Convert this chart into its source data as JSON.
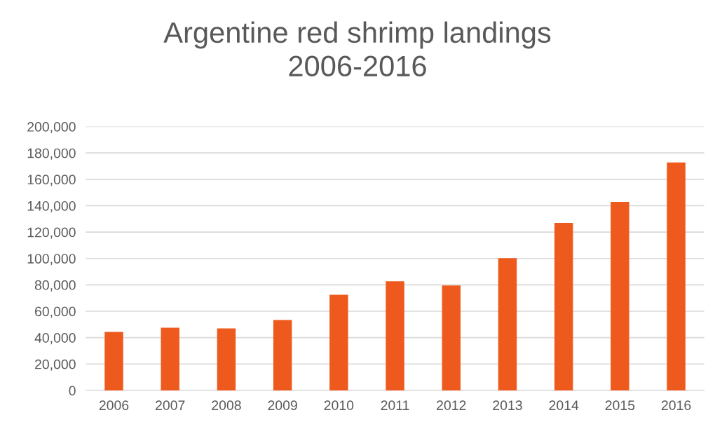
{
  "chart_data": {
    "type": "bar",
    "title": "Argentine red shrimp landings\n2006-2016",
    "categories": [
      "2006",
      "2007",
      "2008",
      "2009",
      "2010",
      "2011",
      "2012",
      "2013",
      "2014",
      "2015",
      "2016"
    ],
    "values": [
      44300,
      47500,
      47000,
      53300,
      72500,
      82700,
      79500,
      100300,
      126900,
      142900,
      172800
    ],
    "color": "#ee5a1e",
    "ylim": [
      0,
      200000
    ],
    "yticks": [
      {
        "value": 0,
        "label": "0"
      },
      {
        "value": 20000,
        "label": "20,000"
      },
      {
        "value": 40000,
        "label": "40,000"
      },
      {
        "value": 60000,
        "label": "60,000"
      },
      {
        "value": 80000,
        "label": "80,000"
      },
      {
        "value": 100000,
        "label": "100,000"
      },
      {
        "value": 120000,
        "label": "120,000"
      },
      {
        "value": 140000,
        "label": "140,000"
      },
      {
        "value": 160000,
        "label": "160,000"
      },
      {
        "value": 180000,
        "label": "180,000"
      },
      {
        "value": 200000,
        "label": "200,000"
      }
    ],
    "grid": "y",
    "legend": false
  }
}
